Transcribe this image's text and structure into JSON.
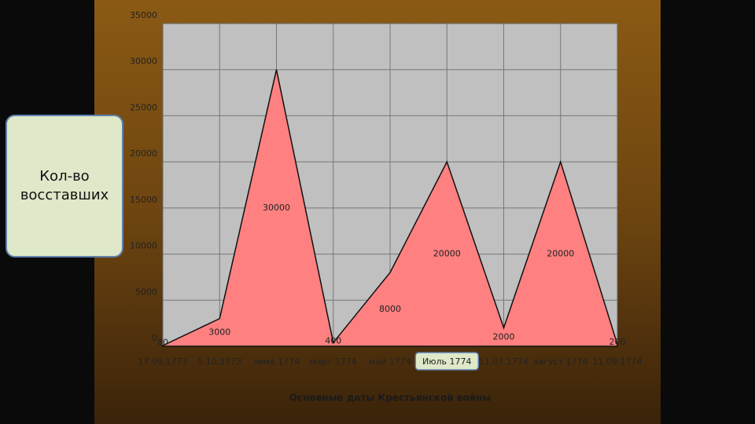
{
  "chart_data": {
    "type": "area",
    "y_label": "Кол-во восставших",
    "x_label": "Основные даты Крестьянской войны",
    "categories": [
      "17.09.1773",
      "5.10.1773",
      "зима 1774",
      "март 1774",
      "май 1774",
      "Июль 1774",
      "11.07.1774",
      "август 1774",
      "11.09.1774"
    ],
    "values": [
      80,
      3000,
      30000,
      400,
      8000,
      20000,
      2000,
      20000,
      200
    ],
    "color": "#ff8080",
    "ylim": [
      0,
      35000
    ],
    "yticks": [
      0,
      5000,
      10000,
      15000,
      20000,
      25000,
      30000,
      35000
    ],
    "grid": true
  }
}
